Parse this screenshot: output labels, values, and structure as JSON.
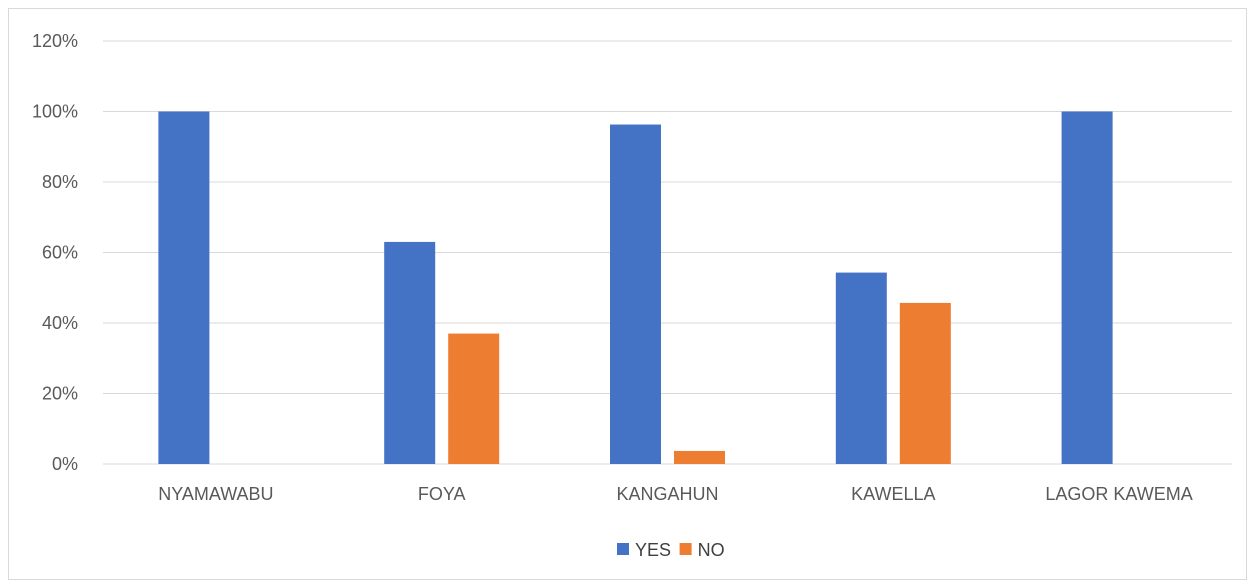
{
  "chart_data": {
    "type": "bar",
    "title": "",
    "xlabel": "",
    "ylabel": "",
    "categories": [
      "NYAMAWABU",
      "FOYA",
      "KANGAHUN",
      "KAWELLA",
      "LAGOR KAWEMA"
    ],
    "series": [
      {
        "name": "YES",
        "color": "#4472C4",
        "values": [
          100,
          63,
          96.3,
          54.3,
          100
        ]
      },
      {
        "name": "NO",
        "color": "#ED7D31",
        "values": [
          0,
          37,
          3.7,
          45.7,
          0
        ]
      }
    ],
    "ylim": [
      0,
      120
    ],
    "yticks": [
      0,
      20,
      40,
      60,
      80,
      100,
      120
    ],
    "ytick_labels": [
      "0%",
      "20%",
      "40%",
      "60%",
      "80%",
      "100%",
      "120%"
    ],
    "grid": true,
    "legend_position": "bottom",
    "colors": {
      "grid": "#d9d9d9",
      "axis_text": "#595959"
    }
  }
}
